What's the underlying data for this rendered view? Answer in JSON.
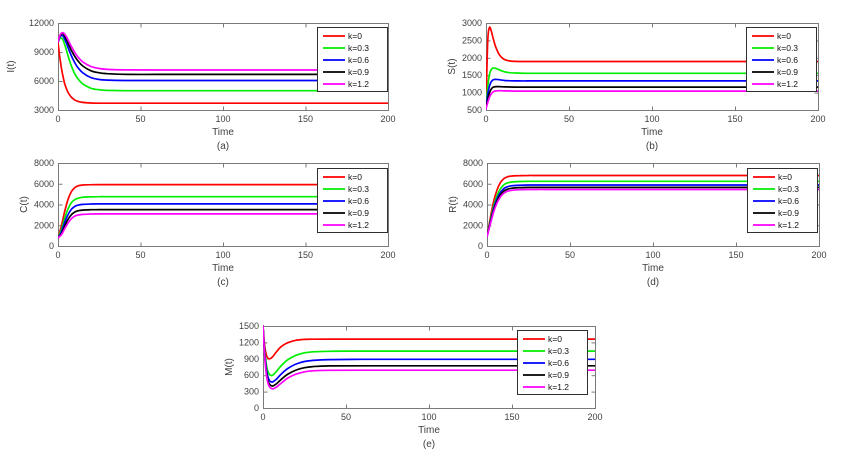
{
  "figure": {
    "background": "#ffffff",
    "axis_color": "#7a7a7a",
    "text_color": "#3f3f3f",
    "legend_border_color": "#2f2f2f",
    "legend_background": "#ffffff"
  },
  "legend": {
    "labels": [
      "k=0",
      "k=0.3",
      "k=0.6",
      "k=0.9",
      "k=1.2"
    ],
    "colors": [
      "#ff0000",
      "#00ee00",
      "#0000ff",
      "#000000",
      "#ff00ff"
    ],
    "position": "top-right"
  },
  "chart_data": [
    {
      "id": "a",
      "type": "line",
      "xlabel": "Time",
      "ylabel": "I(t)",
      "caption": "(a)",
      "xlim": [
        0,
        200
      ],
      "ylim": [
        3000,
        12000
      ],
      "xticks": [
        0,
        50,
        100,
        150,
        200
      ],
      "yticks": [
        3000,
        6000,
        9000,
        12000
      ],
      "grid": false,
      "legend_position": "top-right",
      "x": [
        0,
        1,
        2,
        3,
        4,
        5,
        6,
        8,
        10,
        12,
        15,
        20,
        25,
        30,
        40,
        60,
        100,
        150,
        200
      ],
      "series": [
        {
          "name": "k=0",
          "color": "#ff0000",
          "values": [
            10000,
            8600,
            7400,
            6500,
            5750,
            5250,
            4850,
            4350,
            4050,
            3900,
            3790,
            3720,
            3705,
            3700,
            3700,
            3700,
            3700,
            3700,
            3700
          ]
        },
        {
          "name": "k=0.3",
          "color": "#00ee00",
          "values": [
            10000,
            10350,
            10450,
            10250,
            9800,
            9250,
            8650,
            7600,
            6800,
            6250,
            5700,
            5250,
            5090,
            5030,
            5000,
            5000,
            5000,
            5000,
            5000
          ]
        },
        {
          "name": "k=0.6",
          "color": "#0000ff",
          "values": [
            10000,
            10500,
            10700,
            10650,
            10350,
            9950,
            9500,
            8650,
            7950,
            7400,
            6850,
            6350,
            6160,
            6090,
            6050,
            6050,
            6050,
            6050,
            6050
          ]
        },
        {
          "name": "k=0.9",
          "color": "#000000",
          "values": [
            10000,
            10600,
            10850,
            10870,
            10650,
            10330,
            9950,
            9200,
            8600,
            8100,
            7550,
            7050,
            6850,
            6760,
            6690,
            6680,
            6680,
            6680,
            6680
          ]
        },
        {
          "name": "k=1.2",
          "color": "#ff00ff",
          "values": [
            10000,
            10650,
            10950,
            11000,
            10850,
            10600,
            10280,
            9600,
            9000,
            8500,
            7980,
            7500,
            7290,
            7200,
            7150,
            7140,
            7140,
            7140,
            7140
          ]
        }
      ]
    },
    {
      "id": "b",
      "type": "line",
      "xlabel": "Time",
      "ylabel": "S(t)",
      "caption": "(b)",
      "xlim": [
        0,
        200
      ],
      "ylim": [
        500,
        3000
      ],
      "xticks": [
        0,
        50,
        100,
        150,
        200
      ],
      "yticks": [
        500,
        1000,
        1500,
        2000,
        2500,
        3000
      ],
      "grid": false,
      "legend_position": "top-right",
      "x": [
        0,
        1,
        2,
        3,
        4,
        5,
        6,
        8,
        10,
        12,
        15,
        20,
        25,
        30,
        40,
        60,
        100,
        150,
        200
      ],
      "series": [
        {
          "name": "k=0",
          "color": "#ff0000",
          "values": [
            600,
            2450,
            2860,
            2800,
            2620,
            2440,
            2290,
            2090,
            1985,
            1935,
            1905,
            1895,
            1895,
            1895,
            1895,
            1895,
            1895,
            1895,
            1895
          ]
        },
        {
          "name": "k=0.3",
          "color": "#00ee00",
          "values": [
            580,
            1150,
            1500,
            1650,
            1700,
            1705,
            1695,
            1655,
            1615,
            1590,
            1570,
            1560,
            1555,
            1555,
            1555,
            1555,
            1555,
            1555,
            1555
          ]
        },
        {
          "name": "k=0.6",
          "color": "#0000ff",
          "values": [
            560,
            930,
            1170,
            1300,
            1355,
            1375,
            1380,
            1370,
            1355,
            1345,
            1340,
            1335,
            1335,
            1335,
            1335,
            1335,
            1335,
            1335,
            1335
          ]
        },
        {
          "name": "k=0.9",
          "color": "#000000",
          "values": [
            550,
            800,
            980,
            1090,
            1145,
            1165,
            1172,
            1172,
            1168,
            1163,
            1160,
            1158,
            1158,
            1158,
            1158,
            1158,
            1158,
            1158,
            1158
          ]
        },
        {
          "name": "k=1.2",
          "color": "#ff00ff",
          "values": [
            540,
            710,
            855,
            950,
            1010,
            1038,
            1050,
            1055,
            1052,
            1048,
            1045,
            1043,
            1043,
            1043,
            1043,
            1043,
            1043,
            1043,
            1043
          ]
        }
      ]
    },
    {
      "id": "c",
      "type": "line",
      "xlabel": "Time",
      "ylabel": "C(t)",
      "caption": "(c)",
      "xlim": [
        0,
        200
      ],
      "ylim": [
        0,
        8000
      ],
      "xticks": [
        0,
        50,
        100,
        150,
        200
      ],
      "yticks": [
        0,
        2000,
        4000,
        6000,
        8000
      ],
      "grid": false,
      "legend_position": "top-right",
      "x": [
        0,
        2,
        4,
        6,
        8,
        10,
        12,
        15,
        20,
        25,
        30,
        40,
        60,
        100,
        150,
        200
      ],
      "series": [
        {
          "name": "k=0",
          "color": "#ff0000",
          "values": [
            800,
            1900,
            3300,
            4450,
            5200,
            5600,
            5790,
            5880,
            5910,
            5915,
            5915,
            5915,
            5915,
            5915,
            5915,
            5915
          ]
        },
        {
          "name": "k=0.3",
          "color": "#00ee00",
          "values": [
            800,
            1550,
            2650,
            3550,
            4150,
            4450,
            4600,
            4700,
            4745,
            4755,
            4755,
            4755,
            4755,
            4755,
            4755,
            4755
          ]
        },
        {
          "name": "k=0.6",
          "color": "#0000ff",
          "values": [
            800,
            1330,
            2250,
            3000,
            3520,
            3800,
            3930,
            4010,
            4050,
            4060,
            4060,
            4060,
            4060,
            4060,
            4060,
            4060
          ]
        },
        {
          "name": "k=0.9",
          "color": "#000000",
          "values": [
            800,
            1170,
            1900,
            2550,
            3000,
            3260,
            3390,
            3460,
            3495,
            3505,
            3505,
            3505,
            3505,
            3505,
            3505,
            3505
          ]
        },
        {
          "name": "k=1.2",
          "color": "#ff00ff",
          "values": [
            800,
            1070,
            1650,
            2200,
            2620,
            2860,
            2980,
            3050,
            3085,
            3095,
            3095,
            3095,
            3095,
            3095,
            3095,
            3095
          ]
        }
      ]
    },
    {
      "id": "d",
      "type": "line",
      "xlabel": "Time",
      "ylabel": "R(t)",
      "caption": "(d)",
      "xlim": [
        0,
        200
      ],
      "ylim": [
        0,
        8000
      ],
      "xticks": [
        0,
        50,
        100,
        150,
        200
      ],
      "yticks": [
        0,
        2000,
        4000,
        6000,
        8000
      ],
      "grid": false,
      "legend_position": "top-right",
      "x": [
        0,
        2,
        4,
        6,
        8,
        10,
        12,
        15,
        20,
        25,
        30,
        40,
        60,
        100,
        150,
        200
      ],
      "series": [
        {
          "name": "k=0",
          "color": "#ff0000",
          "values": [
            900,
            2700,
            4300,
            5400,
            6100,
            6470,
            6650,
            6750,
            6790,
            6800,
            6800,
            6800,
            6800,
            6800,
            6800,
            6800
          ]
        },
        {
          "name": "k=0.3",
          "color": "#00ee00",
          "values": [
            900,
            2450,
            3850,
            4850,
            5500,
            5870,
            6060,
            6170,
            6220,
            6235,
            6240,
            6240,
            6240,
            6240,
            6240,
            6240
          ]
        },
        {
          "name": "k=0.6",
          "color": "#0000ff",
          "values": [
            900,
            2300,
            3600,
            4550,
            5150,
            5520,
            5700,
            5810,
            5860,
            5875,
            5880,
            5880,
            5880,
            5880,
            5880,
            5880
          ]
        },
        {
          "name": "k=0.9",
          "color": "#000000",
          "values": [
            900,
            2200,
            3430,
            4330,
            4920,
            5280,
            5460,
            5570,
            5630,
            5645,
            5650,
            5650,
            5650,
            5650,
            5650,
            5650
          ]
        },
        {
          "name": "k=1.2",
          "color": "#ff00ff",
          "values": [
            900,
            2100,
            3280,
            4140,
            4720,
            5070,
            5260,
            5370,
            5430,
            5445,
            5450,
            5450,
            5450,
            5450,
            5450,
            5450
          ]
        }
      ]
    },
    {
      "id": "e",
      "type": "line",
      "xlabel": "Time",
      "ylabel": "M(t)",
      "caption": "(e)",
      "xlim": [
        0,
        200
      ],
      "ylim": [
        0,
        1500
      ],
      "xticks": [
        0,
        50,
        100,
        150,
        200
      ],
      "yticks": [
        0,
        300,
        600,
        900,
        1200,
        1500
      ],
      "grid": false,
      "legend_position": "top-right",
      "x": [
        0,
        1,
        2,
        3,
        4,
        5,
        6,
        8,
        10,
        12,
        15,
        20,
        25,
        30,
        40,
        60,
        100,
        150,
        200
      ],
      "series": [
        {
          "name": "k=0",
          "color": "#ff0000",
          "values": [
            1500,
            1140,
            975,
            910,
            900,
            915,
            945,
            1025,
            1095,
            1145,
            1195,
            1240,
            1255,
            1258,
            1260,
            1260,
            1260,
            1260,
            1260
          ]
        },
        {
          "name": "k=0.3",
          "color": "#00ee00",
          "values": [
            1500,
            1060,
            800,
            665,
            610,
            595,
            605,
            665,
            740,
            805,
            885,
            965,
            1010,
            1028,
            1038,
            1040,
            1040,
            1040,
            1040
          ]
        },
        {
          "name": "k=0.6",
          "color": "#0000ff",
          "values": [
            1500,
            1010,
            720,
            565,
            500,
            478,
            480,
            525,
            590,
            650,
            725,
            805,
            850,
            870,
            885,
            890,
            890,
            890,
            890
          ]
        },
        {
          "name": "k=0.9",
          "color": "#000000",
          "values": [
            1500,
            975,
            660,
            500,
            432,
            408,
            405,
            440,
            495,
            550,
            620,
            695,
            738,
            758,
            770,
            772,
            772,
            772,
            772
          ]
        },
        {
          "name": "k=1.2",
          "color": "#ff00ff",
          "values": [
            1500,
            950,
            620,
            455,
            385,
            358,
            352,
            380,
            430,
            480,
            548,
            620,
            662,
            680,
            690,
            692,
            692,
            692,
            692
          ]
        }
      ]
    }
  ]
}
